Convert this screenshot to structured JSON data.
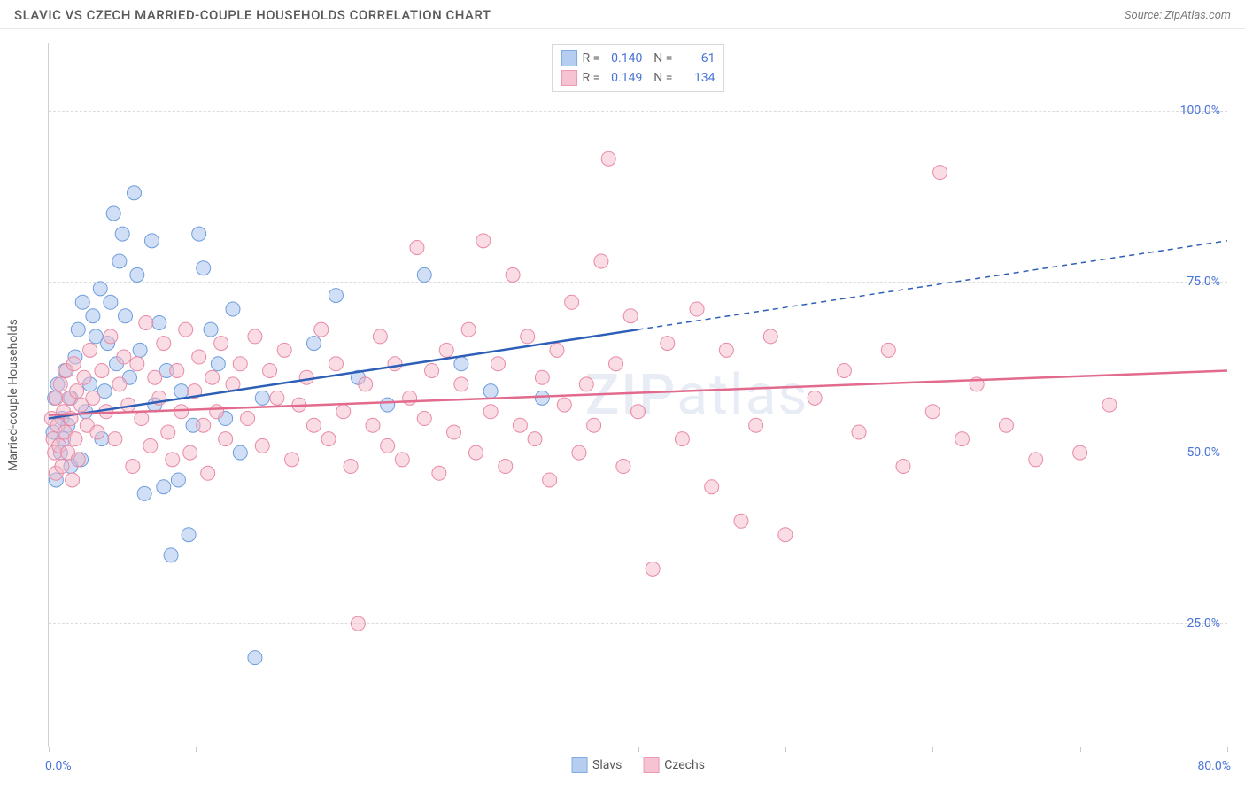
{
  "header": {
    "title": "SLAVIC VS CZECH MARRIED-COUPLE HOUSEHOLDS CORRELATION CHART",
    "source": "Source: ZipAtlas.com"
  },
  "chart": {
    "type": "scatter",
    "ylabel": "Married-couple Households",
    "xlim": [
      0,
      80
    ],
    "ylim": [
      7,
      110
    ],
    "xtick_positions": [
      0,
      10,
      20,
      30,
      40,
      50,
      60,
      70,
      80
    ],
    "xtick_labels_shown": {
      "left": "0.0%",
      "right": "80.0%"
    },
    "ytick_positions": [
      25,
      50,
      75,
      100
    ],
    "ytick_labels": [
      "25.0%",
      "50.0%",
      "75.0%",
      "100.0%"
    ],
    "grid_color": "#dcdcdc",
    "axis_color": "#d0d0d0",
    "background_color": "#ffffff",
    "tick_label_color": "#4a74d8",
    "ylabel_color": "#5a5a5a",
    "watermark": "ZIPatlas",
    "watermark_color": "rgba(120,150,200,0.18)",
    "title_fontsize": 15,
    "label_fontsize": 14
  },
  "series": [
    {
      "name": "Slavs",
      "marker_fill": "#a9c5ec",
      "marker_stroke": "#6e9ddc",
      "marker_fill_opacity": 0.55,
      "marker_radius": 8,
      "trend": {
        "color": "#2e5fb7",
        "width": 2.5,
        "solid": {
          "x1": 0,
          "y1": 55,
          "x2": 40,
          "y2": 68
        },
        "dashed": {
          "x1": 40,
          "y1": 68,
          "x2": 80,
          "y2": 81
        }
      },
      "stats": {
        "R": "0.140",
        "N": "61"
      },
      "points": [
        [
          0.3,
          53
        ],
        [
          0.4,
          58
        ],
        [
          0.5,
          46
        ],
        [
          0.6,
          60
        ],
        [
          0.8,
          50
        ],
        [
          0.9,
          55
        ],
        [
          1.0,
          52
        ],
        [
          1.1,
          62
        ],
        [
          1.3,
          54
        ],
        [
          1.5,
          48
        ],
        [
          1.5,
          58
        ],
        [
          1.8,
          64
        ],
        [
          2.0,
          68
        ],
        [
          2.2,
          49
        ],
        [
          2.3,
          72
        ],
        [
          2.5,
          56
        ],
        [
          2.8,
          60
        ],
        [
          3.0,
          70
        ],
        [
          3.2,
          67
        ],
        [
          3.5,
          74
        ],
        [
          3.6,
          52
        ],
        [
          3.8,
          59
        ],
        [
          4.0,
          66
        ],
        [
          4.2,
          72
        ],
        [
          4.4,
          85
        ],
        [
          4.6,
          63
        ],
        [
          4.8,
          78
        ],
        [
          5.0,
          82
        ],
        [
          5.2,
          70
        ],
        [
          5.5,
          61
        ],
        [
          5.8,
          88
        ],
        [
          6.0,
          76
        ],
        [
          6.2,
          65
        ],
        [
          6.5,
          44
        ],
        [
          7.0,
          81
        ],
        [
          7.2,
          57
        ],
        [
          7.5,
          69
        ],
        [
          7.8,
          45
        ],
        [
          8.0,
          62
        ],
        [
          8.3,
          35
        ],
        [
          8.8,
          46
        ],
        [
          9.0,
          59
        ],
        [
          9.5,
          38
        ],
        [
          9.8,
          54
        ],
        [
          10.2,
          82
        ],
        [
          10.5,
          77
        ],
        [
          11.0,
          68
        ],
        [
          11.5,
          63
        ],
        [
          12.0,
          55
        ],
        [
          12.5,
          71
        ],
        [
          13.0,
          50
        ],
        [
          14.0,
          20
        ],
        [
          14.5,
          58
        ],
        [
          18.0,
          66
        ],
        [
          19.5,
          73
        ],
        [
          21.0,
          61
        ],
        [
          23.0,
          57
        ],
        [
          25.5,
          76
        ],
        [
          28.0,
          63
        ],
        [
          30.0,
          59
        ],
        [
          33.5,
          58
        ]
      ]
    },
    {
      "name": "Czechs",
      "marker_fill": "#f4b9c9",
      "marker_stroke": "#e98aa5",
      "marker_fill_opacity": 0.5,
      "marker_radius": 8,
      "trend": {
        "color": "#e26a8d",
        "width": 2.5,
        "solid": {
          "x1": 0,
          "y1": 55.5,
          "x2": 80,
          "y2": 62
        }
      },
      "stats": {
        "R": "0.149",
        "N": "134"
      },
      "points": [
        [
          0.2,
          55
        ],
        [
          0.3,
          52
        ],
        [
          0.4,
          50
        ],
        [
          0.5,
          47
        ],
        [
          0.5,
          58
        ],
        [
          0.6,
          54
        ],
        [
          0.7,
          51
        ],
        [
          0.8,
          60
        ],
        [
          0.9,
          48
        ],
        [
          1.0,
          56
        ],
        [
          1.1,
          53
        ],
        [
          1.2,
          62
        ],
        [
          1.3,
          50
        ],
        [
          1.4,
          58
        ],
        [
          1.5,
          55
        ],
        [
          1.6,
          46
        ],
        [
          1.7,
          63
        ],
        [
          1.8,
          52
        ],
        [
          1.9,
          59
        ],
        [
          2.0,
          49
        ],
        [
          2.2,
          57
        ],
        [
          2.4,
          61
        ],
        [
          2.6,
          54
        ],
        [
          2.8,
          65
        ],
        [
          3.0,
          58
        ],
        [
          3.3,
          53
        ],
        [
          3.6,
          62
        ],
        [
          3.9,
          56
        ],
        [
          4.2,
          67
        ],
        [
          4.5,
          52
        ],
        [
          4.8,
          60
        ],
        [
          5.1,
          64
        ],
        [
          5.4,
          57
        ],
        [
          5.7,
          48
        ],
        [
          6.0,
          63
        ],
        [
          6.3,
          55
        ],
        [
          6.6,
          69
        ],
        [
          6.9,
          51
        ],
        [
          7.2,
          61
        ],
        [
          7.5,
          58
        ],
        [
          7.8,
          66
        ],
        [
          8.1,
          53
        ],
        [
          8.4,
          49
        ],
        [
          8.7,
          62
        ],
        [
          9.0,
          56
        ],
        [
          9.3,
          68
        ],
        [
          9.6,
          50
        ],
        [
          9.9,
          59
        ],
        [
          10.2,
          64
        ],
        [
          10.5,
          54
        ],
        [
          10.8,
          47
        ],
        [
          11.1,
          61
        ],
        [
          11.4,
          56
        ],
        [
          11.7,
          66
        ],
        [
          12.0,
          52
        ],
        [
          12.5,
          60
        ],
        [
          13.0,
          63
        ],
        [
          13.5,
          55
        ],
        [
          14.0,
          67
        ],
        [
          14.5,
          51
        ],
        [
          15.0,
          62
        ],
        [
          15.5,
          58
        ],
        [
          16.0,
          65
        ],
        [
          16.5,
          49
        ],
        [
          17.0,
          57
        ],
        [
          17.5,
          61
        ],
        [
          18.0,
          54
        ],
        [
          18.5,
          68
        ],
        [
          19.0,
          52
        ],
        [
          19.5,
          63
        ],
        [
          20.0,
          56
        ],
        [
          20.5,
          48
        ],
        [
          21.0,
          25
        ],
        [
          21.5,
          60
        ],
        [
          22.0,
          54
        ],
        [
          22.5,
          67
        ],
        [
          23.0,
          51
        ],
        [
          23.5,
          63
        ],
        [
          24.0,
          49
        ],
        [
          24.5,
          58
        ],
        [
          25.0,
          80
        ],
        [
          25.5,
          55
        ],
        [
          26.0,
          62
        ],
        [
          26.5,
          47
        ],
        [
          27.0,
          65
        ],
        [
          27.5,
          53
        ],
        [
          28.0,
          60
        ],
        [
          28.5,
          68
        ],
        [
          29.0,
          50
        ],
        [
          29.5,
          81
        ],
        [
          30.0,
          56
        ],
        [
          30.5,
          63
        ],
        [
          31.0,
          48
        ],
        [
          31.5,
          76
        ],
        [
          32.0,
          54
        ],
        [
          32.5,
          67
        ],
        [
          33.0,
          52
        ],
        [
          33.5,
          61
        ],
        [
          34.0,
          46
        ],
        [
          34.5,
          65
        ],
        [
          35.0,
          57
        ],
        [
          35.5,
          72
        ],
        [
          36.0,
          50
        ],
        [
          36.5,
          60
        ],
        [
          37.0,
          54
        ],
        [
          37.5,
          78
        ],
        [
          38.0,
          93
        ],
        [
          38.5,
          63
        ],
        [
          39.0,
          48
        ],
        [
          39.5,
          70
        ],
        [
          40.0,
          56
        ],
        [
          41.0,
          33
        ],
        [
          42.0,
          66
        ],
        [
          43.0,
          52
        ],
        [
          44.0,
          71
        ],
        [
          45.0,
          45
        ],
        [
          46.0,
          65
        ],
        [
          47.0,
          40
        ],
        [
          48.0,
          54
        ],
        [
          49.0,
          67
        ],
        [
          50.0,
          38
        ],
        [
          52.0,
          58
        ],
        [
          54.0,
          62
        ],
        [
          55.0,
          53
        ],
        [
          57.0,
          65
        ],
        [
          58.0,
          48
        ],
        [
          60.0,
          56
        ],
        [
          60.5,
          91
        ],
        [
          62.0,
          52
        ],
        [
          63.0,
          60
        ],
        [
          65.0,
          54
        ],
        [
          67.0,
          49
        ],
        [
          70.0,
          50
        ],
        [
          72.0,
          57
        ]
      ]
    }
  ],
  "legend_bottom": [
    {
      "label": "Slavs",
      "fill": "#a9c5ec",
      "stroke": "#6e9ddc"
    },
    {
      "label": "Czechs",
      "fill": "#f4b9c9",
      "stroke": "#e98aa5"
    }
  ]
}
